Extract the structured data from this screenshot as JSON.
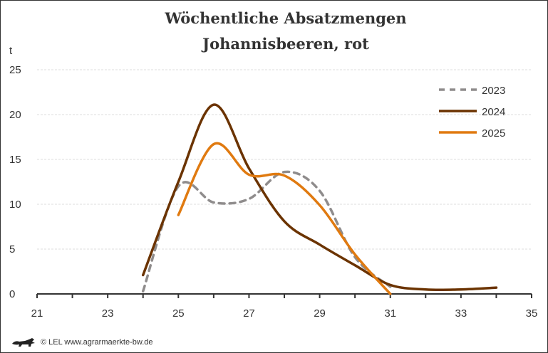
{
  "chart_data": {
    "type": "line",
    "title": [
      "Wöchentliche Absatzmengen",
      "Johannisbeeren, rot"
    ],
    "ylabel": "t",
    "xlabel": "",
    "xlim": [
      21,
      35
    ],
    "ylim": [
      0,
      25
    ],
    "xticks": [
      21,
      23,
      25,
      27,
      29,
      31,
      33,
      35
    ],
    "yticks": [
      0,
      5,
      10,
      15,
      20,
      25
    ],
    "grid": "horizontal dashed",
    "legend_position": "top-right",
    "series": [
      {
        "name": "2023",
        "color": "#8f8c8c",
        "dash": true,
        "x": [
          24,
          25,
          26,
          27,
          28,
          29,
          30,
          31
        ],
        "y": [
          0.3,
          12.0,
          10.2,
          10.6,
          13.6,
          11.5,
          4.1,
          0.8
        ]
      },
      {
        "name": "2024",
        "color": "#6b3300",
        "dash": false,
        "x": [
          24,
          25,
          26,
          27,
          28,
          29,
          30,
          31,
          32,
          33,
          34
        ],
        "y": [
          2.1,
          12.5,
          21.1,
          14.0,
          8.1,
          5.5,
          3.2,
          1.0,
          0.5,
          0.5,
          0.7
        ]
      },
      {
        "name": "2025",
        "color": "#e07a10",
        "dash": false,
        "x": [
          25,
          26,
          27,
          28,
          29,
          30,
          31
        ],
        "y": [
          8.8,
          16.7,
          13.3,
          13.2,
          9.9,
          4.4,
          0.0
        ]
      }
    ]
  },
  "footer": {
    "logo_icon": "lion-logo-icon",
    "text": "© LEL www.agrarmaerkte-bw.de"
  }
}
